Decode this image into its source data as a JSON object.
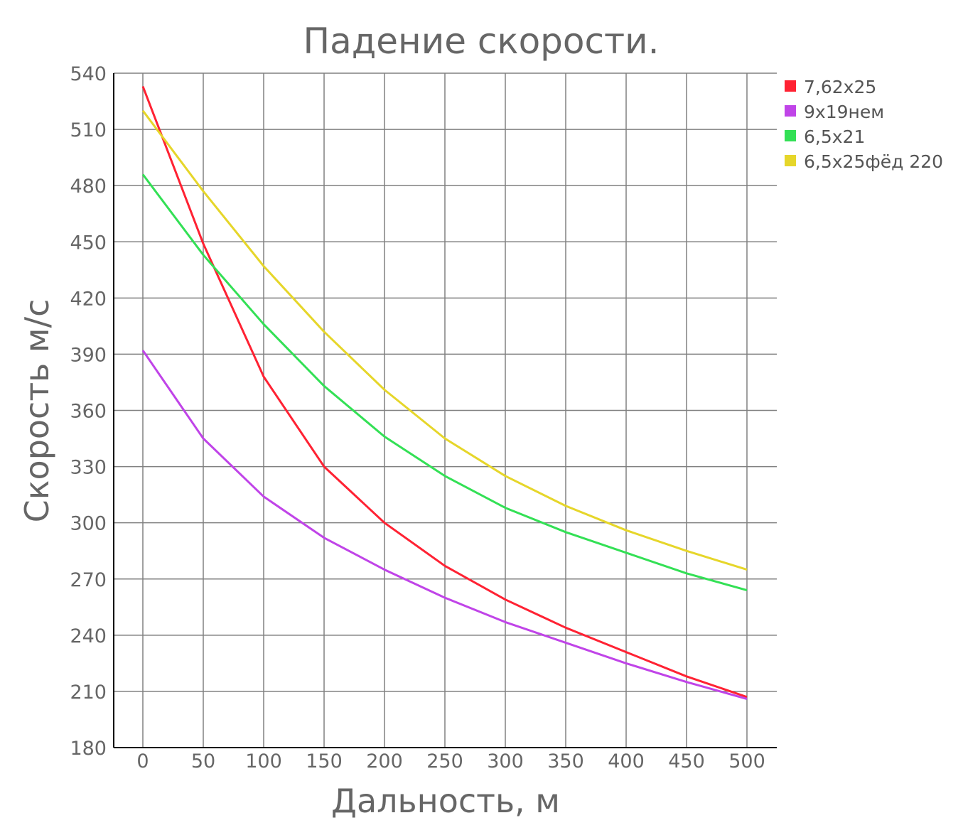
{
  "chart_data": {
    "type": "line",
    "title": "Падение скорости.",
    "xlabel": "Дальность, м",
    "ylabel": "Скорость м/с",
    "x": [
      0,
      50,
      100,
      150,
      200,
      250,
      300,
      350,
      400,
      450,
      500
    ],
    "xlim": [
      0,
      500
    ],
    "ylim": [
      180,
      540
    ],
    "yticks": [
      180,
      210,
      240,
      270,
      300,
      330,
      360,
      390,
      420,
      450,
      480,
      510,
      540
    ],
    "grid": true,
    "legend_position": "top-right",
    "series": [
      {
        "name": "7,62x25",
        "color": "#ff2233",
        "values": [
          533,
          449,
          378,
          330,
          300,
          277,
          259,
          244,
          231,
          218,
          207
        ]
      },
      {
        "name": "9x19нем",
        "color": "#c044e8",
        "values": [
          392,
          345,
          314,
          292,
          275,
          260,
          247,
          236,
          225,
          215,
          206
        ]
      },
      {
        "name": "6,5x21",
        "color": "#33e055",
        "values": [
          486,
          443,
          406,
          373,
          346,
          325,
          308,
          295,
          284,
          273,
          264
        ]
      },
      {
        "name": "6,5x25фёд 220",
        "color": "#e6d62a",
        "values": [
          520,
          477,
          437,
          402,
          371,
          345,
          325,
          309,
          296,
          285,
          275
        ]
      }
    ]
  }
}
